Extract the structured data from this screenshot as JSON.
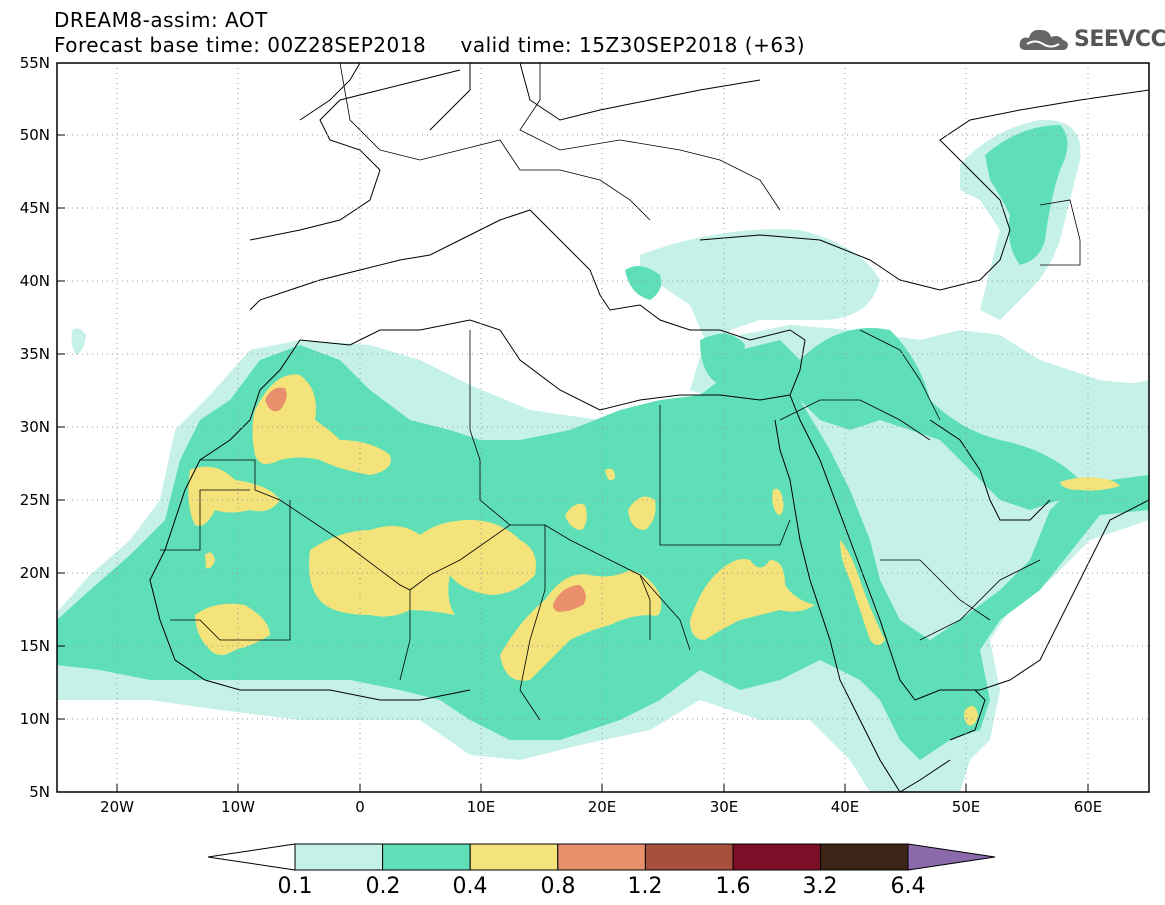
{
  "header": {
    "title": "DREAM8-assim: AOT",
    "subtitle": "Forecast base time: 00Z28SEP2018     valid time: 15Z30SEP2018 (+63)",
    "logo_text": "SEEVCCC"
  },
  "map": {
    "lon_range": [
      -25,
      65
    ],
    "lat_range": [
      5,
      55
    ],
    "lat_ticks": [
      "55N",
      "50N",
      "45N",
      "40N",
      "35N",
      "30N",
      "25N",
      "20N",
      "15N",
      "10N",
      "5N"
    ],
    "lon_ticks": [
      "20W",
      "10W",
      "0",
      "10E",
      "20E",
      "30E",
      "40E",
      "50E",
      "60E"
    ],
    "grid": "dotted"
  },
  "colorbar": {
    "labels": [
      "0.1",
      "0.2",
      "0.4",
      "0.8",
      "1.2",
      "1.6",
      "3.2",
      "6.4"
    ],
    "colors": [
      "#c5f1e9",
      "#5fdfb7",
      "#f3e37a",
      "#e8906b",
      "#a6503e",
      "#7b0f27",
      "#3c2416",
      "#8a6aab"
    ],
    "below_color": "#ffffff"
  }
}
